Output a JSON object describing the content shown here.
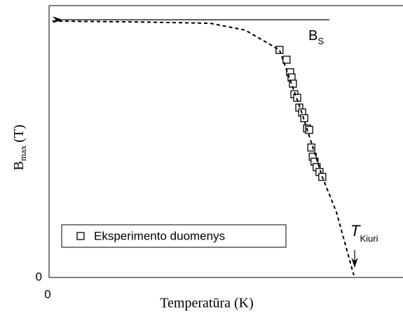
{
  "chart_data": {
    "type": "scatter",
    "x_label": "Temperatūra (K)",
    "y_label": "B",
    "y_label_sub": "max",
    "y_label_unit": "(T)",
    "xlim": [
      0,
      100
    ],
    "ylim": [
      0,
      100
    ],
    "xticks": [
      0
    ],
    "yticks": [
      0
    ],
    "series": [
      {
        "name": "Eksperimento duomenys",
        "color": "#000000",
        "marker": "square",
        "x": [
          65.1,
          67.1,
          68.1,
          68.5,
          68.9,
          69.3,
          70.1,
          70.7,
          71.5,
          72.1,
          72.9,
          73.5,
          74.1,
          74.5,
          75.0,
          75.6,
          76.4,
          77.2
        ],
        "y": [
          83.7,
          80.1,
          75.5,
          73.6,
          71.3,
          67.4,
          66.1,
          62.5,
          60.7,
          58.6,
          54.8,
          54.3,
          47.8,
          44.4,
          42.6,
          40.6,
          38.8,
          37.0
        ]
      },
      {
        "color": "#000000",
        "style": "dashed",
        "x": [
          1,
          25.7,
          45.5,
          55.4,
          61.4,
          65.1,
          71.3,
          77.2,
          81.2,
          86.1
        ],
        "y": [
          94.3,
          94,
          93.5,
          91,
          86.5,
          83.7,
          61,
          37,
          24,
          0.8
        ]
      }
    ],
    "reference_line": {
      "y": 94.8
    },
    "annotations": [
      {
        "text": "B",
        "sub": "S"
      },
      {
        "text": "T",
        "sub": "Kiuri"
      }
    ],
    "legend": "lower left"
  }
}
